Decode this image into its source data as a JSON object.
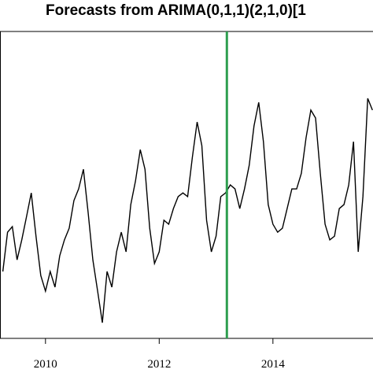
{
  "chart_data": {
    "type": "line",
    "title": "Forecasts from ARIMA(0,1,1)(2,1,0)[1",
    "x": [
      2009.25,
      2009.333,
      2009.417,
      2009.5,
      2009.583,
      2009.667,
      2009.75,
      2009.833,
      2009.917,
      2010.0,
      2010.083,
      2010.167,
      2010.25,
      2010.333,
      2010.417,
      2010.5,
      2010.583,
      2010.667,
      2010.75,
      2010.833,
      2010.917,
      2011.0,
      2011.083,
      2011.167,
      2011.25,
      2011.333,
      2011.417,
      2011.5,
      2011.583,
      2011.667,
      2011.75,
      2011.833,
      2011.917,
      2012.0,
      2012.083,
      2012.167,
      2012.25,
      2012.333,
      2012.417,
      2012.5,
      2012.583,
      2012.667,
      2012.75,
      2012.833,
      2012.917,
      2013.0,
      2013.083,
      2013.167,
      2013.25,
      2013.333,
      2013.417,
      2013.5,
      2013.583,
      2013.667,
      2013.75,
      2013.833,
      2013.917,
      2014.0,
      2014.083,
      2014.167,
      2014.25,
      2014.333,
      2014.417,
      2014.5,
      2014.583,
      2014.667,
      2014.75,
      2014.833,
      2014.917,
      2015.0,
      2015.083,
      2015.167,
      2015.25,
      2015.333,
      2015.417,
      2015.5,
      2015.583,
      2015.667,
      2015.75
    ],
    "series": [
      {
        "color": "#000000",
        "values": [
          21.8,
          34.6,
          36.4,
          25.6,
          32.1,
          39.7,
          47.4,
          33.3,
          20.5,
          15.4,
          21.8,
          16.7,
          26.9,
          32.1,
          35.9,
          44.9,
          48.7,
          55.1,
          41.0,
          25.6,
          15.4,
          5.1,
          21.8,
          16.7,
          28.2,
          34.6,
          28.2,
          43.6,
          51.3,
          61.5,
          55.1,
          35.9,
          24.4,
          28.2,
          38.5,
          37.2,
          42.3,
          46.2,
          47.4,
          46.2,
          59.0,
          70.5,
          62.8,
          38.5,
          28.2,
          33.3,
          46.2,
          47.4,
          50.0,
          48.7,
          42.3,
          48.7,
          56.4,
          69.2,
          76.9,
          64.1,
          43.6,
          37.2,
          34.6,
          35.9,
          42.3,
          48.7,
          48.7,
          53.8,
          65.4,
          74.4,
          71.8,
          53.8,
          37.2,
          32.1,
          33.3,
          42.3,
          43.6,
          50.0,
          64.1,
          28.2,
          46.2,
          78.2,
          74.4
        ]
      }
    ],
    "vline": {
      "x": 2013.19,
      "color": "#2e9e4f"
    },
    "xlim": [
      2009.2,
      2015.76
    ],
    "xticks": [
      2010,
      2012,
      2014
    ],
    "ylim": [
      0,
      100
    ]
  }
}
